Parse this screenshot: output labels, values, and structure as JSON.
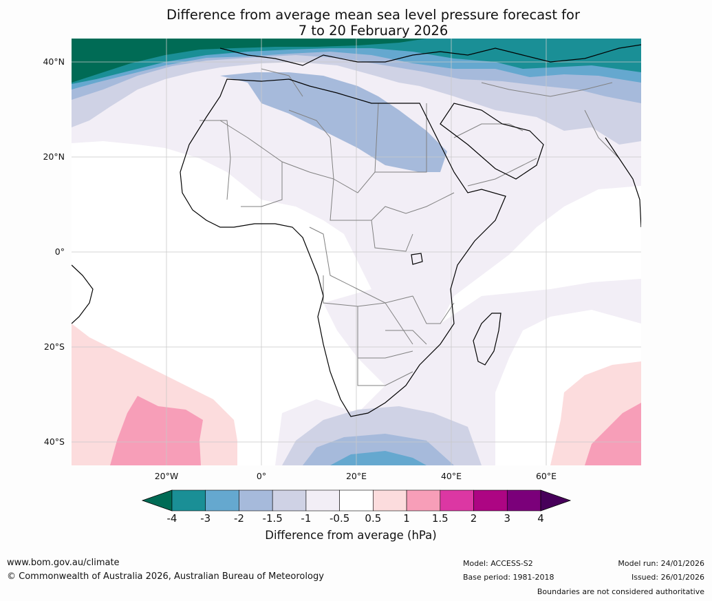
{
  "title": {
    "line1": "Difference from average mean sea level pressure forecast for",
    "line2": "7 to 20 February 2026"
  },
  "axes": {
    "lat_labels": [
      "40°N",
      "20°N",
      "0°",
      "20°S",
      "40°S"
    ],
    "lon_labels": [
      "20°W",
      "0°",
      "20°E",
      "40°E",
      "60°E"
    ]
  },
  "colorbar": {
    "ticks": [
      "-4",
      "-3",
      "-2",
      "-1.5",
      "-1",
      "-0.5",
      "0.5",
      "1",
      "1.5",
      "2",
      "3",
      "4"
    ],
    "colors": {
      "below": "#006b55",
      "bins": [
        "#1a8f96",
        "#65a8cf",
        "#a6badb",
        "#cfd2e5",
        "#f2eef6",
        "#ffffff",
        "#fcdcdd",
        "#f79eb8",
        "#dc37a3",
        "#ad0583",
        "#7b007a"
      ],
      "above": "#47005a"
    },
    "label": "Difference from average (hPa)"
  },
  "footer": {
    "website": "www.bom.gov.au/climate",
    "copyright": "© Commonwealth of Australia 2026, Australian Bureau of Meteorology",
    "model": "Model: ACCESS-S2",
    "base_period": "Base period: 1981-2018",
    "model_run": "Model run: 24/01/2026",
    "issued": "Issued: 26/01/2026",
    "disclaimer": "Boundaries are not considered authoritative"
  }
}
